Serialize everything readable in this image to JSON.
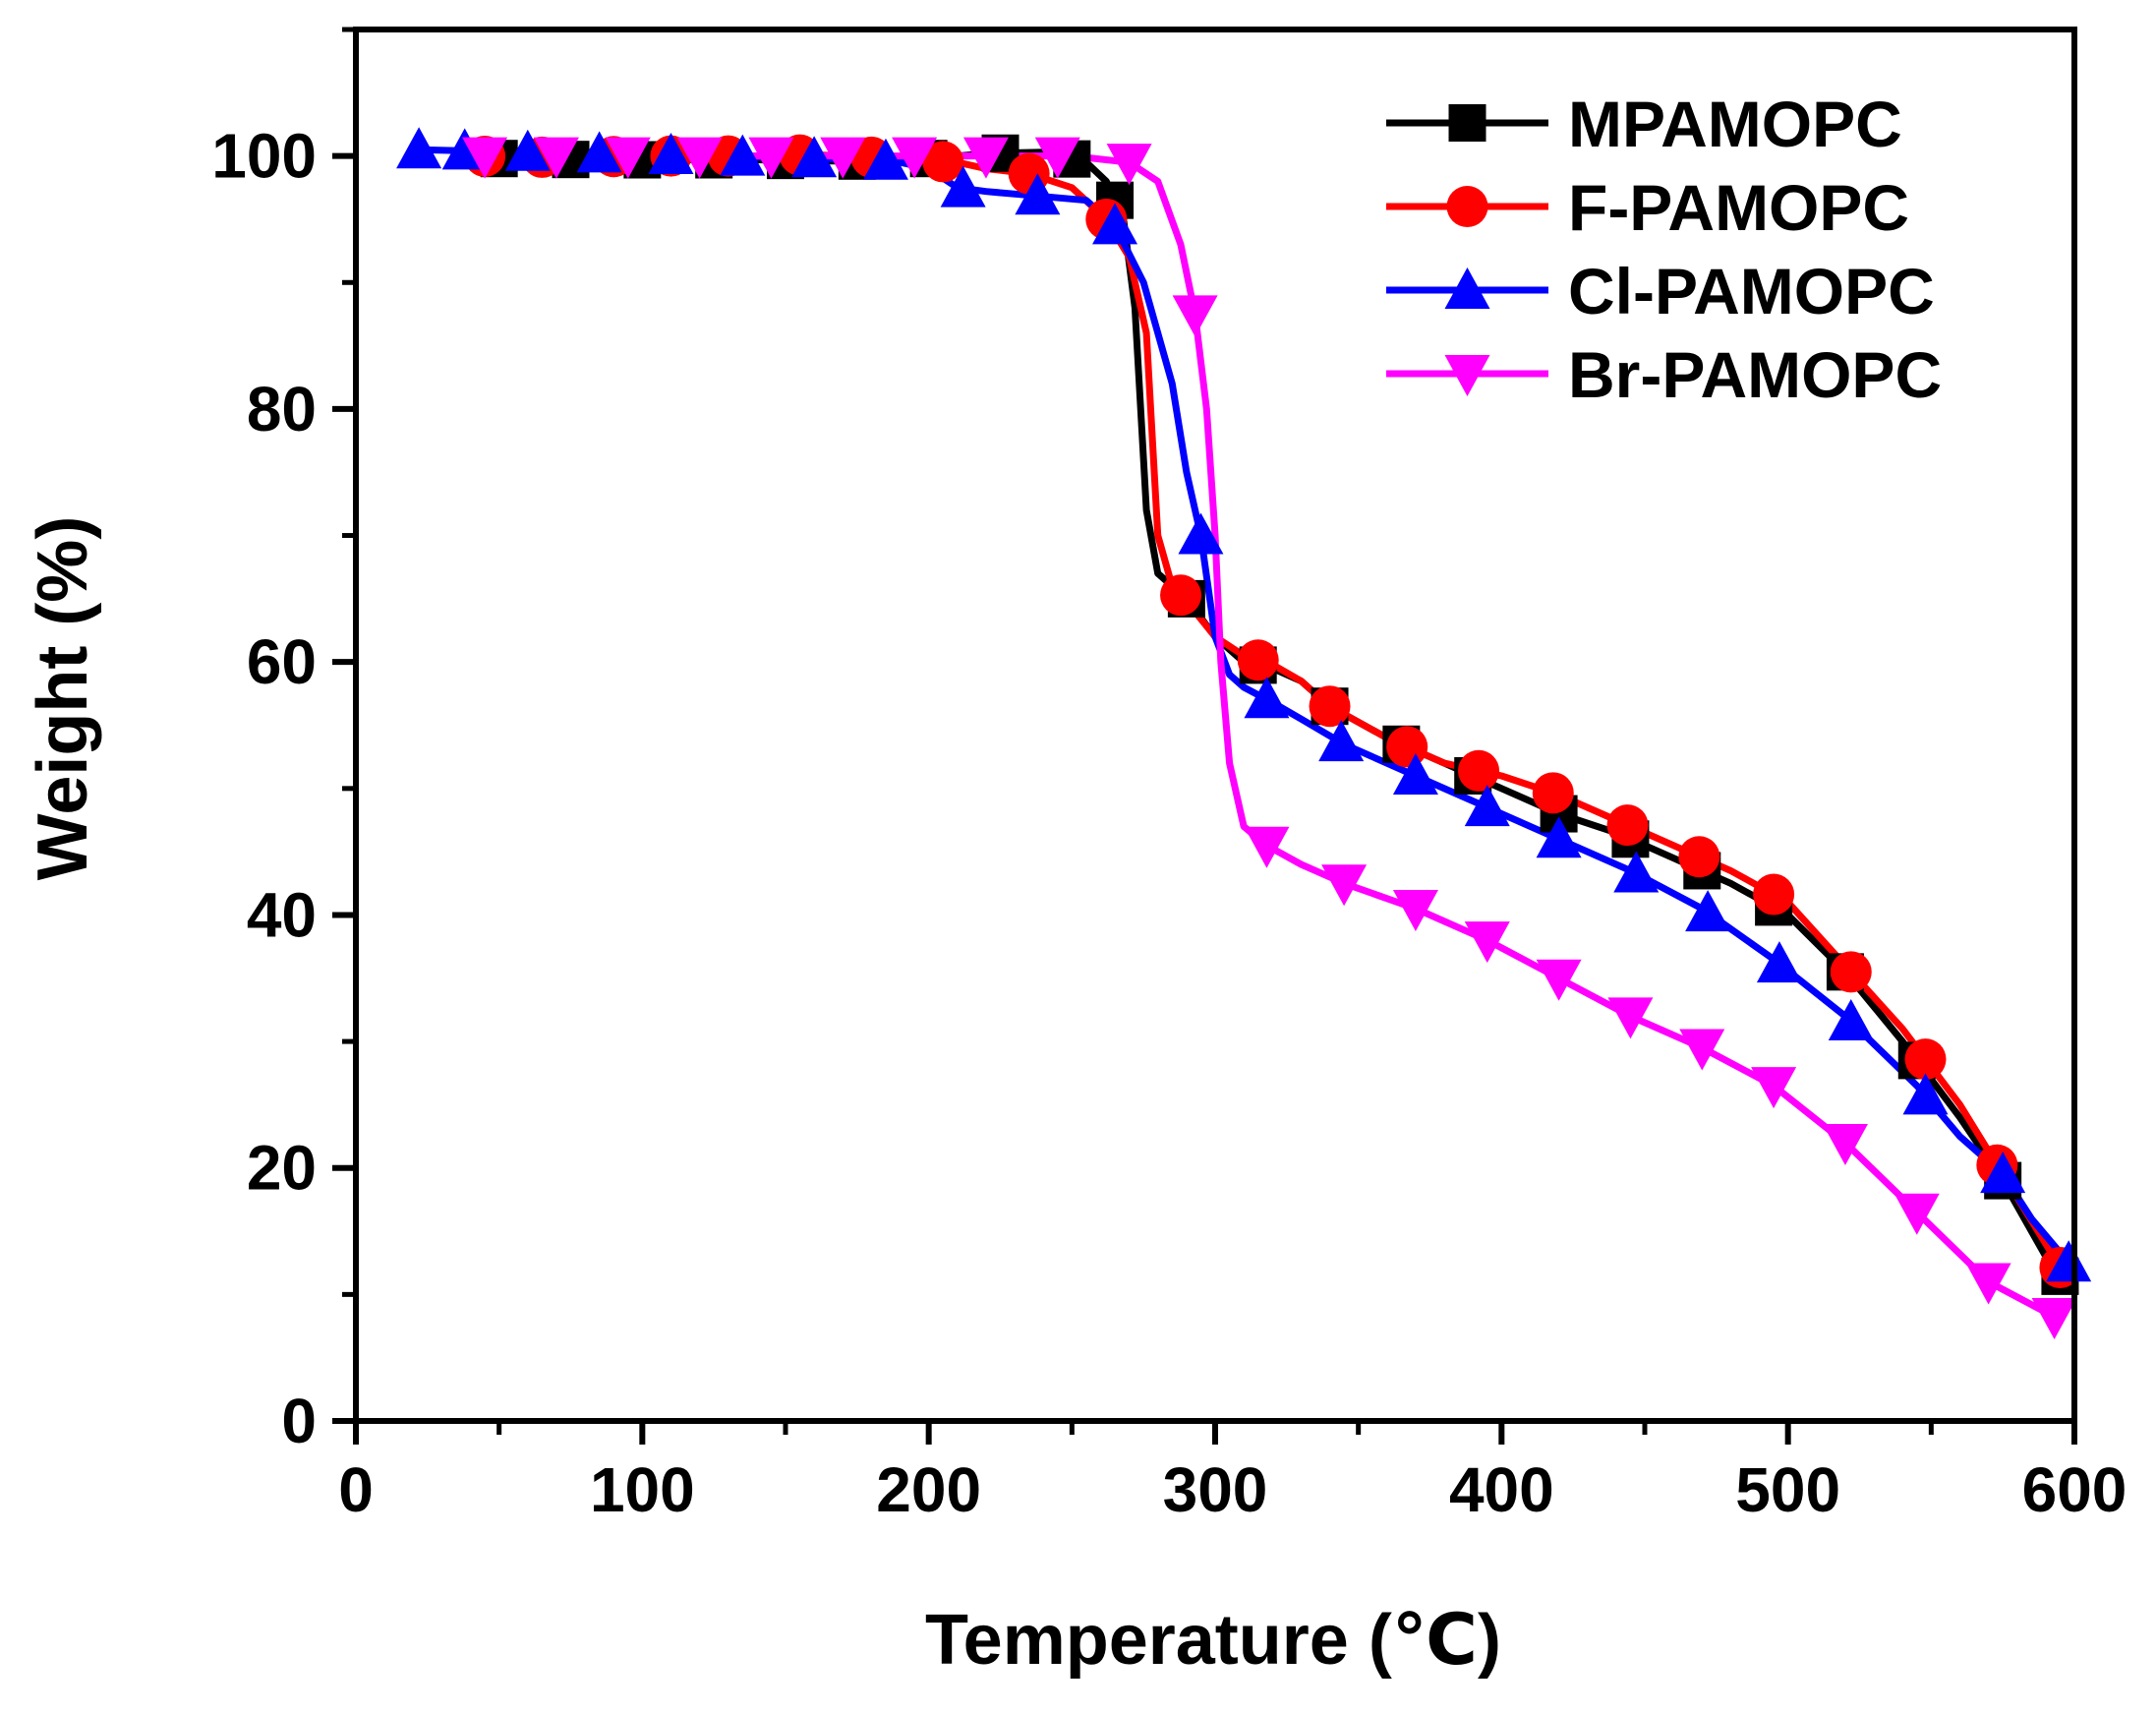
{
  "chart_data": {
    "type": "line",
    "title": "",
    "xlabel": "Temperature (℃)",
    "ylabel": "Weight (%)",
    "xlim": [
      0,
      600
    ],
    "ylim": [
      0,
      110
    ],
    "xticks": [
      0,
      100,
      200,
      300,
      400,
      500,
      600
    ],
    "yticks": [
      0,
      20,
      40,
      60,
      80,
      100
    ],
    "x_minor_step": 50,
    "y_minor_step": 10,
    "grid": false,
    "legend_position": "top-right",
    "series": [
      {
        "name": "MPAMOPC",
        "color": "#000000",
        "marker": "square",
        "points": [
          [
            40,
            99.8
          ],
          [
            60,
            99.8
          ],
          [
            80,
            99.7
          ],
          [
            100,
            99.7
          ],
          [
            120,
            99.7
          ],
          [
            140,
            99.7
          ],
          [
            160,
            99.6
          ],
          [
            180,
            99.6
          ],
          [
            200,
            99.8
          ],
          [
            220,
            100.2
          ],
          [
            240,
            100.3
          ],
          [
            255,
            99.5
          ],
          [
            262,
            98
          ],
          [
            268,
            95
          ],
          [
            272,
            88
          ],
          [
            276,
            72
          ],
          [
            280,
            67
          ],
          [
            290,
            65
          ],
          [
            300,
            62
          ],
          [
            310,
            60
          ],
          [
            320,
            59.5
          ],
          [
            330,
            58.5
          ],
          [
            340,
            56.5
          ],
          [
            360,
            54
          ],
          [
            380,
            52
          ],
          [
            400,
            50
          ],
          [
            420,
            48
          ],
          [
            440,
            46.5
          ],
          [
            460,
            44.5
          ],
          [
            480,
            42.5
          ],
          [
            500,
            40
          ],
          [
            520,
            35.5
          ],
          [
            540,
            30
          ],
          [
            560,
            24
          ],
          [
            575,
            19
          ],
          [
            590,
            13
          ],
          [
            598,
            10.5
          ]
        ],
        "marker_x": [
          50,
          75,
          100,
          125,
          150,
          175,
          200,
          225,
          250,
          265,
          290,
          315,
          340,
          365,
          390,
          420,
          445,
          470,
          495,
          520,
          545,
          575,
          595
        ]
      },
      {
        "name": "F-PAMOPC",
        "color": "#ff0000",
        "marker": "circle",
        "points": [
          [
            40,
            100
          ],
          [
            60,
            99.9
          ],
          [
            80,
            99.9
          ],
          [
            100,
            100
          ],
          [
            120,
            100
          ],
          [
            140,
            100
          ],
          [
            160,
            100.1
          ],
          [
            180,
            99.9
          ],
          [
            200,
            99.6
          ],
          [
            210,
            99.5
          ],
          [
            220,
            99
          ],
          [
            235,
            98.6
          ],
          [
            250,
            97.5
          ],
          [
            262,
            95
          ],
          [
            270,
            92
          ],
          [
            276,
            86
          ],
          [
            280,
            70
          ],
          [
            285,
            66
          ],
          [
            290,
            64.8
          ],
          [
            300,
            62
          ],
          [
            310,
            60.5
          ],
          [
            320,
            59.8
          ],
          [
            330,
            58.5
          ],
          [
            340,
            56.5
          ],
          [
            360,
            54
          ],
          [
            380,
            52
          ],
          [
            400,
            51
          ],
          [
            420,
            49.5
          ],
          [
            440,
            47.5
          ],
          [
            460,
            45.5
          ],
          [
            480,
            43.5
          ],
          [
            500,
            41
          ],
          [
            520,
            36
          ],
          [
            540,
            31
          ],
          [
            560,
            25
          ],
          [
            575,
            19.5
          ],
          [
            590,
            14
          ],
          [
            598,
            11
          ]
        ],
        "marker_x": [
          45,
          65,
          90,
          110,
          130,
          155,
          180,
          205,
          235,
          262,
          288,
          315,
          340,
          367,
          392,
          418,
          444,
          469,
          495,
          522,
          548,
          573,
          595
        ]
      },
      {
        "name": "Cl-PAMOPC",
        "color": "#0000ff",
        "marker": "triangle-up",
        "points": [
          [
            22,
            100.5
          ],
          [
            40,
            100.4
          ],
          [
            60,
            100.3
          ],
          [
            80,
            100.2
          ],
          [
            100,
            100.1
          ],
          [
            120,
            100
          ],
          [
            140,
            99.9
          ],
          [
            160,
            99.8
          ],
          [
            180,
            99.7
          ],
          [
            190,
            99.5
          ],
          [
            200,
            99
          ],
          [
            210,
            97.5
          ],
          [
            220,
            97.2
          ],
          [
            240,
            96.8
          ],
          [
            255,
            96.5
          ],
          [
            265,
            94.5
          ],
          [
            275,
            90
          ],
          [
            285,
            82
          ],
          [
            290,
            75
          ],
          [
            295,
            70
          ],
          [
            300,
            62
          ],
          [
            305,
            59
          ],
          [
            310,
            58
          ],
          [
            320,
            56.8
          ],
          [
            330,
            55.5
          ],
          [
            345,
            53.5
          ],
          [
            370,
            51
          ],
          [
            395,
            48.5
          ],
          [
            420,
            46
          ],
          [
            445,
            43.5
          ],
          [
            470,
            40.5
          ],
          [
            495,
            36.5
          ],
          [
            520,
            32
          ],
          [
            545,
            26.5
          ],
          [
            560,
            22.5
          ],
          [
            575,
            19.5
          ],
          [
            585,
            16
          ],
          [
            598,
            12.5
          ]
        ],
        "marker_x": [
          22,
          38,
          60,
          85,
          110,
          135,
          160,
          185,
          212,
          238,
          265,
          295,
          318,
          344,
          370,
          395,
          420,
          447,
          472,
          497,
          522,
          548,
          575,
          598
        ]
      },
      {
        "name": "Br-PAMOPC",
        "color": "#ff00ff",
        "marker": "triangle-down",
        "points": [
          [
            45,
            100
          ],
          [
            70,
            100
          ],
          [
            100,
            100
          ],
          [
            150,
            100
          ],
          [
            200,
            100
          ],
          [
            250,
            100
          ],
          [
            270,
            99.5
          ],
          [
            280,
            98
          ],
          [
            288,
            93
          ],
          [
            293,
            87.5
          ],
          [
            297,
            80
          ],
          [
            300,
            70
          ],
          [
            302,
            60
          ],
          [
            305,
            52
          ],
          [
            310,
            47
          ],
          [
            318,
            45.5
          ],
          [
            330,
            44
          ],
          [
            345,
            42.5
          ],
          [
            370,
            40.5
          ],
          [
            395,
            38
          ],
          [
            420,
            35
          ],
          [
            445,
            32
          ],
          [
            470,
            29.5
          ],
          [
            495,
            26.5
          ],
          [
            520,
            22
          ],
          [
            545,
            16.5
          ],
          [
            570,
            11
          ],
          [
            595,
            8
          ]
        ],
        "marker_x": [
          45,
          70,
          95,
          120,
          145,
          170,
          195,
          220,
          245,
          270,
          293,
          318,
          345,
          370,
          395,
          420,
          445,
          470,
          495,
          520,
          545,
          570,
          593
        ]
      }
    ]
  }
}
